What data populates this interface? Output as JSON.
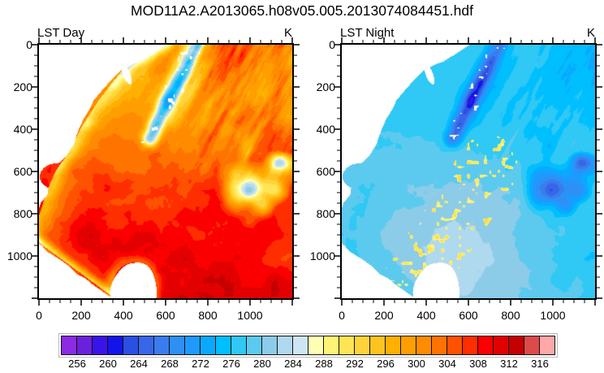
{
  "title": "MOD11A2.A2013065.h08v05.005.2013074084451.hdf",
  "chart_data": {
    "type": "heatmap",
    "dataset_filename": "MOD11A2.A2013065.h08v05.005.2013074084451.hdf",
    "layout": {
      "grid": false,
      "panels_side_by_side": 2,
      "colorbar_position": "bottom"
    },
    "panels": [
      {
        "id": "day",
        "label": "LST Day",
        "units": "K",
        "x_range": [
          0,
          1200
        ],
        "y_range": [
          0,
          1200
        ],
        "y_inverted": true,
        "x_tick_labels": [
          "0",
          "200",
          "400",
          "600",
          "800",
          "1000"
        ],
        "y_tick_labels": [
          "0",
          "200",
          "400",
          "600",
          "800",
          "1000"
        ],
        "tick_major_interval": 200,
        "tick_minor_interval": 50,
        "value_summary": "Daytime land surface temperature mostly 296-314 K (orange to dark red) with yellow patches ~288-294 K, a cold diagonal mountain band ~268-280 K (blue) from top-center toward mid-left, scattered cold blue patches ~274-280 K near the right edge, and white (missing/ocean) areas along the left coast and bottom-left"
      },
      {
        "id": "night",
        "label": "LST Night",
        "units": "K",
        "x_range": [
          0,
          1200
        ],
        "y_range": [
          0,
          1200
        ],
        "y_inverted": true,
        "x_tick_labels": [
          "0",
          "200",
          "400",
          "600",
          "800",
          "1000"
        ],
        "y_tick_labels": [
          "0",
          "200",
          "400",
          "600",
          "800",
          "1000"
        ],
        "tick_major_interval": 200,
        "tick_minor_interval": 50,
        "value_summary": "Nighttime land surface temperature mostly 272-286 K (medium to pale blue), a dark blue cold band ~256-264 K along the same diagonal mountain range, sparse warm yellow speckles ~288-292 K in the lower center, and the same white ocean mask on the left and bottom-left"
      }
    ],
    "colorbar": {
      "units": "K",
      "min": 254,
      "max": 318,
      "step": 2,
      "tick_labels": [
        "256",
        "260",
        "264",
        "268",
        "272",
        "276",
        "280",
        "284",
        "288",
        "292",
        "296",
        "300",
        "304",
        "308",
        "312",
        "316"
      ],
      "colors": [
        "#8B2BE2",
        "#6B21DC",
        "#3A13E8",
        "#1414E8",
        "#2B4FE3",
        "#3766E8",
        "#3A7CEE",
        "#2E90F4",
        "#1E9AFF",
        "#0AA9FF",
        "#00BFFF",
        "#30C8F4",
        "#5CCAEE",
        "#8CCCE8",
        "#AFD9EE",
        "#CEE5F2",
        "#FFFFB4",
        "#FFF478",
        "#FFE455",
        "#FFD43A",
        "#FFC31F",
        "#FFB000",
        "#FF9E00",
        "#FF8C00",
        "#FF7400",
        "#FF5200",
        "#FF2E00",
        "#FB0000",
        "#E20000",
        "#C40000",
        "#DC4A4A",
        "#FFA8A8"
      ]
    }
  }
}
